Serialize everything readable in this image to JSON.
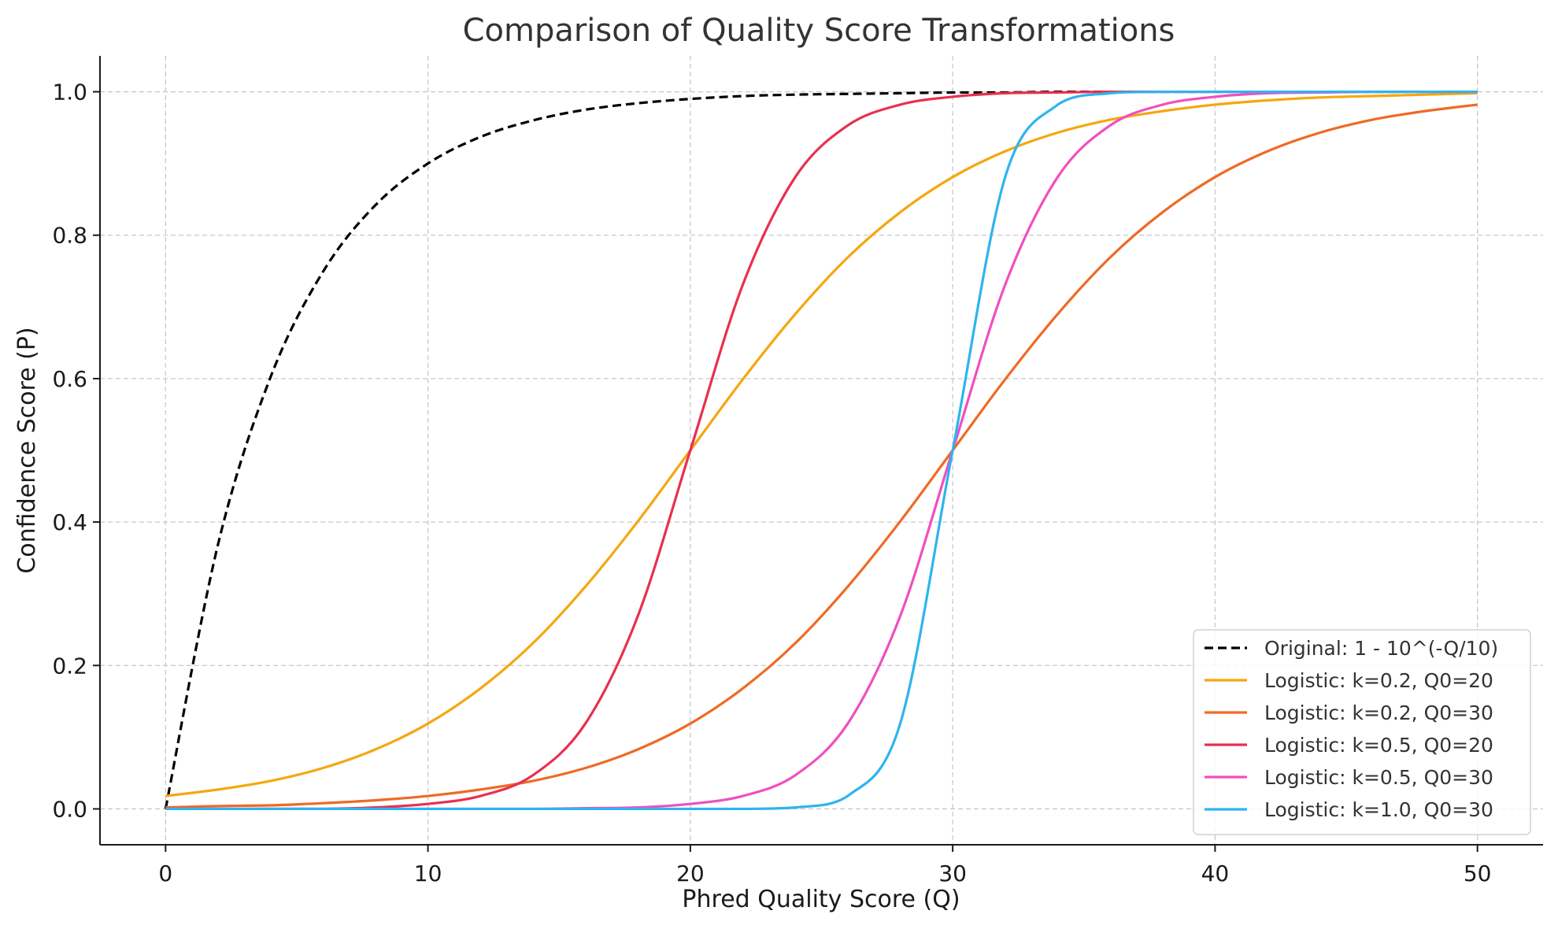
{
  "chart_data": {
    "type": "line",
    "title": "Comparison of Quality Score Transformations",
    "xlabel": "Phred Quality Score (Q)",
    "ylabel": "Confidence Score (P)",
    "xlim": [
      -2.5,
      52.5
    ],
    "ylim": [
      -0.05,
      1.05
    ],
    "xticks": [
      0,
      10,
      20,
      30,
      40,
      50
    ],
    "yticks": [
      0.0,
      0.2,
      0.4,
      0.6,
      0.8,
      1.0
    ],
    "xtick_labels": [
      "0",
      "10",
      "20",
      "30",
      "40",
      "50"
    ],
    "ytick_labels": [
      "0.0",
      "0.2",
      "0.4",
      "0.6",
      "0.8",
      "1.0"
    ],
    "grid": true,
    "legend_position": "lower-right",
    "x": [
      0,
      2,
      4,
      6,
      8,
      10,
      12,
      14,
      16,
      18,
      20,
      22,
      24,
      26,
      28,
      30,
      32,
      34,
      36,
      38,
      40,
      42,
      44,
      46,
      48,
      50
    ],
    "series": [
      {
        "name": "Original: 1 - 10^(-Q/10)",
        "color": "#000000",
        "dashed": true,
        "values": [
          0.0,
          0.369,
          0.602,
          0.749,
          0.842,
          0.9,
          0.937,
          0.96,
          0.975,
          0.984,
          0.99,
          0.994,
          0.996,
          0.997,
          0.998,
          0.999,
          0.999,
          1.0,
          1.0,
          1.0,
          1.0,
          1.0,
          1.0,
          1.0,
          1.0,
          1.0
        ]
      },
      {
        "name": "Logistic: k=0.2, Q0=20",
        "color": "#f5a70f",
        "dashed": false,
        "values": [
          0.018,
          0.027,
          0.039,
          0.057,
          0.083,
          0.119,
          0.168,
          0.231,
          0.31,
          0.401,
          0.5,
          0.599,
          0.69,
          0.769,
          0.832,
          0.881,
          0.917,
          0.943,
          0.961,
          0.973,
          0.982,
          0.988,
          0.992,
          0.994,
          0.996,
          0.998
        ]
      },
      {
        "name": "Logistic: k=0.2, Q0=30",
        "color": "#ef6a25",
        "dashed": false,
        "values": [
          0.002,
          0.004,
          0.005,
          0.008,
          0.012,
          0.018,
          0.027,
          0.039,
          0.057,
          0.083,
          0.119,
          0.168,
          0.231,
          0.31,
          0.401,
          0.5,
          0.599,
          0.69,
          0.769,
          0.832,
          0.881,
          0.917,
          0.943,
          0.961,
          0.973,
          0.982
        ]
      },
      {
        "name": "Logistic: k=0.5, Q0=20",
        "color": "#e8304f",
        "dashed": false,
        "values": [
          0.0,
          0.0,
          0.0,
          0.0,
          0.002,
          0.007,
          0.018,
          0.047,
          0.119,
          0.269,
          0.5,
          0.731,
          0.881,
          0.953,
          0.982,
          0.993,
          0.998,
          0.999,
          1.0,
          1.0,
          1.0,
          1.0,
          1.0,
          1.0,
          1.0,
          1.0
        ]
      },
      {
        "name": "Logistic: k=0.5, Q0=30",
        "color": "#f04fbe",
        "dashed": false,
        "values": [
          0.0,
          0.0,
          0.0,
          0.0,
          0.0,
          0.0,
          0.0,
          0.0,
          0.001,
          0.002,
          0.007,
          0.018,
          0.047,
          0.119,
          0.269,
          0.5,
          0.731,
          0.881,
          0.953,
          0.982,
          0.993,
          0.998,
          0.999,
          1.0,
          1.0,
          1.0
        ]
      },
      {
        "name": "Logistic: k=1.0, Q0=30",
        "color": "#2eb4f0",
        "dashed": false,
        "values": [
          0.0,
          0.0,
          0.0,
          0.0,
          0.0,
          0.0,
          0.0,
          0.0,
          0.0,
          0.0,
          0.0,
          0.0,
          0.002,
          0.018,
          0.119,
          0.5,
          0.881,
          0.982,
          0.998,
          1.0,
          1.0,
          1.0,
          1.0,
          1.0,
          1.0,
          1.0
        ]
      }
    ]
  }
}
